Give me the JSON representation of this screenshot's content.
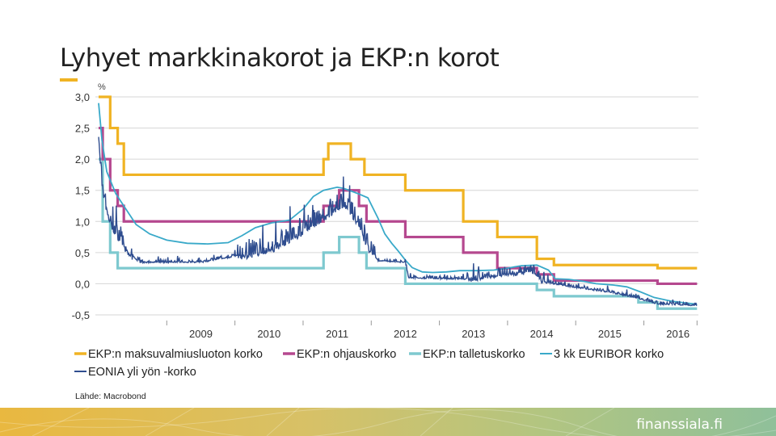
{
  "header": {
    "title": "Lyhyet markkinakorot ja EKP:n korot"
  },
  "footer": {
    "brand": "finanssiala.fi"
  },
  "colors": {
    "accent": "#f0b323",
    "lending": "#f0b323",
    "refi": "#b5488f",
    "deposit": "#7ec9cf",
    "euribor": "#39a9c9",
    "eonia": "#2f4d8f"
  },
  "chart_data": {
    "type": "line",
    "title": "Lyhyet markkinakorot ja EKP:n korot",
    "ylabel": "%",
    "ylim": [
      -0.5,
      3.0
    ],
    "yticks": [
      "3,0",
      "2,5",
      "2,0",
      "1,5",
      "1,0",
      "0,5",
      "0,0",
      "-0,5"
    ],
    "ytick_values": [
      3.0,
      2.5,
      2.0,
      1.5,
      1.0,
      0.5,
      0.0,
      -0.5
    ],
    "xlim": [
      2008.0,
      2016.8
    ],
    "xticks": [
      "2009",
      "2010",
      "2011",
      "2012",
      "2013",
      "2014",
      "2015",
      "2016"
    ],
    "xtick_values": [
      2009.5,
      2010.5,
      2011.5,
      2012.5,
      2013.5,
      2014.5,
      2015.5,
      2016.5
    ],
    "source": "Lähde: Macrobond",
    "series": [
      {
        "name": "EKP:n maksuvalmiusluoton korko",
        "color": "#f0b323",
        "step": true,
        "points": [
          [
            2008.0,
            3.0
          ],
          [
            2008.17,
            2.5
          ],
          [
            2008.28,
            2.25
          ],
          [
            2008.37,
            1.75
          ],
          [
            2010.3,
            1.75
          ],
          [
            2011.3,
            2.0
          ],
          [
            2011.37,
            2.25
          ],
          [
            2011.7,
            2.0
          ],
          [
            2011.9,
            1.75
          ],
          [
            2012.5,
            1.5
          ],
          [
            2013.35,
            1.0
          ],
          [
            2013.85,
            0.75
          ],
          [
            2014.43,
            0.4
          ],
          [
            2014.68,
            0.3
          ],
          [
            2015.62,
            0.3
          ],
          [
            2016.2,
            0.25
          ],
          [
            2016.78,
            0.25
          ]
        ]
      },
      {
        "name": "EKP:n ohjauskorko",
        "color": "#b5488f",
        "step": true,
        "points": [
          [
            2008.0,
            2.5
          ],
          [
            2008.06,
            2.0
          ],
          [
            2008.17,
            1.5
          ],
          [
            2008.28,
            1.25
          ],
          [
            2008.37,
            1.0
          ],
          [
            2011.3,
            1.25
          ],
          [
            2011.53,
            1.5
          ],
          [
            2011.82,
            1.25
          ],
          [
            2011.93,
            1.0
          ],
          [
            2012.5,
            0.75
          ],
          [
            2013.35,
            0.5
          ],
          [
            2013.85,
            0.25
          ],
          [
            2014.43,
            0.15
          ],
          [
            2014.68,
            0.05
          ],
          [
            2016.2,
            0.0
          ],
          [
            2016.78,
            0.0
          ]
        ]
      },
      {
        "name": "EKP:n talletuskorko",
        "color": "#7ec9cf",
        "step": true,
        "points": [
          [
            2008.0,
            2.0
          ],
          [
            2008.06,
            1.0
          ],
          [
            2008.17,
            0.5
          ],
          [
            2008.28,
            0.25
          ],
          [
            2011.3,
            0.5
          ],
          [
            2011.53,
            0.75
          ],
          [
            2011.82,
            0.5
          ],
          [
            2011.93,
            0.25
          ],
          [
            2012.5,
            0.0
          ],
          [
            2014.43,
            -0.1
          ],
          [
            2014.68,
            -0.2
          ],
          [
            2015.92,
            -0.3
          ],
          [
            2016.2,
            -0.4
          ],
          [
            2016.78,
            -0.4
          ]
        ]
      },
      {
        "name": "3 kk EURIBOR korko",
        "color": "#39a9c9",
        "step": false,
        "points": [
          [
            2008.0,
            2.9
          ],
          [
            2008.05,
            2.3
          ],
          [
            2008.12,
            1.8
          ],
          [
            2008.25,
            1.45
          ],
          [
            2008.4,
            1.2
          ],
          [
            2008.55,
            0.95
          ],
          [
            2008.75,
            0.8
          ],
          [
            2009.0,
            0.7
          ],
          [
            2009.3,
            0.65
          ],
          [
            2009.6,
            0.64
          ],
          [
            2009.9,
            0.66
          ],
          [
            2010.1,
            0.77
          ],
          [
            2010.3,
            0.9
          ],
          [
            2010.55,
            0.98
          ],
          [
            2010.8,
            1.02
          ],
          [
            2011.0,
            1.2
          ],
          [
            2011.15,
            1.4
          ],
          [
            2011.3,
            1.5
          ],
          [
            2011.5,
            1.55
          ],
          [
            2011.6,
            1.53
          ],
          [
            2011.8,
            1.45
          ],
          [
            2011.95,
            1.38
          ],
          [
            2012.1,
            1.05
          ],
          [
            2012.2,
            0.8
          ],
          [
            2012.3,
            0.65
          ],
          [
            2012.4,
            0.52
          ],
          [
            2012.5,
            0.38
          ],
          [
            2012.6,
            0.26
          ],
          [
            2012.75,
            0.19
          ],
          [
            2012.9,
            0.18
          ],
          [
            2013.1,
            0.19
          ],
          [
            2013.3,
            0.21
          ],
          [
            2013.55,
            0.21
          ],
          [
            2013.8,
            0.22
          ],
          [
            2014.0,
            0.25
          ],
          [
            2014.2,
            0.29
          ],
          [
            2014.43,
            0.3
          ],
          [
            2014.6,
            0.22
          ],
          [
            2014.7,
            0.08
          ],
          [
            2014.9,
            0.07
          ],
          [
            2015.1,
            0.04
          ],
          [
            2015.3,
            0.0
          ],
          [
            2015.55,
            -0.02
          ],
          [
            2015.75,
            -0.05
          ],
          [
            2015.95,
            -0.13
          ],
          [
            2016.15,
            -0.22
          ],
          [
            2016.4,
            -0.28
          ],
          [
            2016.78,
            -0.33
          ]
        ]
      },
      {
        "name": "EONIA yli yön -korko",
        "color": "#2f4d8f",
        "step": false,
        "noisy": true,
        "points": [
          [
            2008.0,
            2.4
          ],
          [
            2008.05,
            1.6
          ],
          [
            2008.1,
            1.3
          ],
          [
            2008.2,
            0.9
          ],
          [
            2008.3,
            0.7
          ],
          [
            2008.45,
            0.5
          ],
          [
            2008.6,
            0.35
          ],
          [
            2009.5,
            0.35
          ],
          [
            2010.3,
            0.5
          ],
          [
            2010.6,
            0.6
          ],
          [
            2011.0,
            0.85
          ],
          [
            2011.4,
            1.15
          ],
          [
            2011.6,
            1.3
          ],
          [
            2011.8,
            1.0
          ],
          [
            2011.95,
            0.6
          ],
          [
            2012.1,
            0.38
          ],
          [
            2012.5,
            0.35
          ],
          [
            2012.55,
            0.1
          ],
          [
            2013.5,
            0.08
          ],
          [
            2013.85,
            0.15
          ],
          [
            2014.4,
            0.2
          ],
          [
            2014.5,
            0.05
          ],
          [
            2014.7,
            0.0
          ],
          [
            2015.0,
            -0.05
          ],
          [
            2015.5,
            -0.13
          ],
          [
            2015.9,
            -0.22
          ],
          [
            2016.2,
            -0.32
          ],
          [
            2016.78,
            -0.34
          ]
        ]
      }
    ]
  }
}
